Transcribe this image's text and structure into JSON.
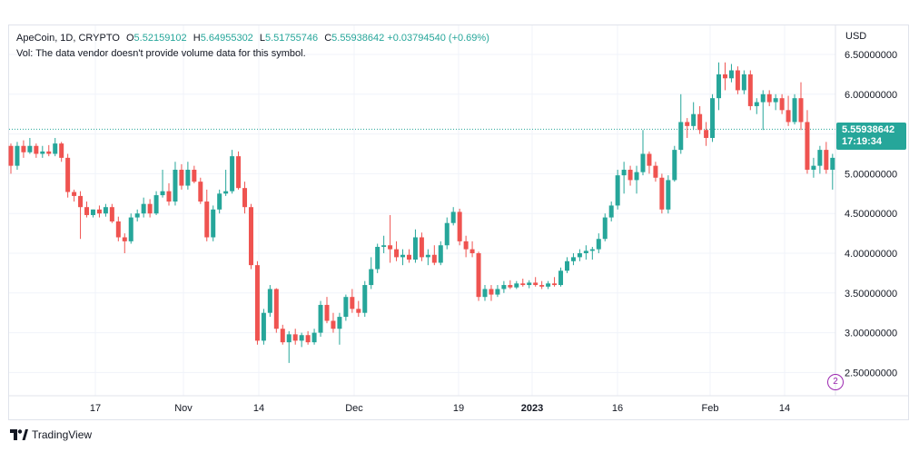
{
  "legend": {
    "symbol": "ApeCoin, 1D, CRYPTO",
    "open_key": "O",
    "open": "5.52159102",
    "high_key": "H",
    "high": "5.64955302",
    "low_key": "L",
    "low": "5.51755746",
    "close_key": "C",
    "close": "5.55938642",
    "change": "+0.03794540 (+0.69%)",
    "volume_note": "Vol: The data vendor doesn't provide volume data for this symbol."
  },
  "currency": "USD",
  "price_tag": {
    "price": "5.55938642",
    "countdown": "17:19:34"
  },
  "branding": {
    "name": "TradingView"
  },
  "colors": {
    "up": "#26a69a",
    "down": "#ef5350",
    "grid": "#f0f3fa",
    "last_price_line": "#26a69a"
  },
  "chart_data": {
    "type": "candlestick",
    "symbol": "ApeCoin",
    "interval": "1D",
    "ylim": [
      2.25,
      6.8
    ],
    "y_ticks": [
      "6.50000000",
      "6.00000000",
      "5.50000000",
      "5.00000000",
      "4.50000000",
      "4.00000000",
      "3.50000000",
      "3.00000000",
      "2.50000000"
    ],
    "x_ticks": [
      "17",
      "Nov",
      "14",
      "Dec",
      "19",
      "2023",
      "16",
      "Feb",
      "14"
    ],
    "grid": true,
    "last_price": 5.55938642,
    "candles": [
      {
        "o": 5.35,
        "h": 5.38,
        "l": 5.0,
        "c": 5.1
      },
      {
        "o": 5.1,
        "h": 5.4,
        "l": 5.05,
        "c": 5.35
      },
      {
        "o": 5.35,
        "h": 5.42,
        "l": 5.2,
        "c": 5.27
      },
      {
        "o": 5.27,
        "h": 5.45,
        "l": 5.25,
        "c": 5.35
      },
      {
        "o": 5.35,
        "h": 5.38,
        "l": 5.2,
        "c": 5.25
      },
      {
        "o": 5.25,
        "h": 5.35,
        "l": 5.2,
        "c": 5.28
      },
      {
        "o": 5.28,
        "h": 5.36,
        "l": 5.22,
        "c": 5.25
      },
      {
        "o": 5.25,
        "h": 5.45,
        "l": 5.22,
        "c": 5.38
      },
      {
        "o": 5.38,
        "h": 5.4,
        "l": 5.15,
        "c": 5.2
      },
      {
        "o": 5.2,
        "h": 5.25,
        "l": 4.7,
        "c": 4.77
      },
      {
        "o": 4.77,
        "h": 4.8,
        "l": 4.65,
        "c": 4.72
      },
      {
        "o": 4.72,
        "h": 4.78,
        "l": 4.18,
        "c": 4.58
      },
      {
        "o": 4.58,
        "h": 4.65,
        "l": 4.45,
        "c": 4.48
      },
      {
        "o": 4.48,
        "h": 4.55,
        "l": 4.45,
        "c": 4.55
      },
      {
        "o": 4.55,
        "h": 4.6,
        "l": 4.45,
        "c": 4.5
      },
      {
        "o": 4.5,
        "h": 4.62,
        "l": 4.46,
        "c": 4.58
      },
      {
        "o": 4.58,
        "h": 4.62,
        "l": 4.38,
        "c": 4.4
      },
      {
        "o": 4.4,
        "h": 4.46,
        "l": 4.15,
        "c": 4.2
      },
      {
        "o": 4.2,
        "h": 4.25,
        "l": 4.0,
        "c": 4.15
      },
      {
        "o": 4.15,
        "h": 4.5,
        "l": 4.12,
        "c": 4.45
      },
      {
        "o": 4.45,
        "h": 4.55,
        "l": 4.4,
        "c": 4.5
      },
      {
        "o": 4.5,
        "h": 4.7,
        "l": 4.45,
        "c": 4.62
      },
      {
        "o": 4.62,
        "h": 4.68,
        "l": 4.45,
        "c": 4.5
      },
      {
        "o": 4.5,
        "h": 4.78,
        "l": 4.48,
        "c": 4.73
      },
      {
        "o": 4.73,
        "h": 5.05,
        "l": 4.7,
        "c": 4.78
      },
      {
        "o": 4.78,
        "h": 4.88,
        "l": 4.6,
        "c": 4.65
      },
      {
        "o": 4.65,
        "h": 5.15,
        "l": 4.6,
        "c": 5.05
      },
      {
        "o": 5.05,
        "h": 5.12,
        "l": 4.8,
        "c": 4.85
      },
      {
        "o": 4.85,
        "h": 5.15,
        "l": 4.8,
        "c": 5.05
      },
      {
        "o": 5.05,
        "h": 5.1,
        "l": 4.88,
        "c": 4.9
      },
      {
        "o": 4.9,
        "h": 4.95,
        "l": 4.62,
        "c": 4.65
      },
      {
        "o": 4.65,
        "h": 4.8,
        "l": 4.15,
        "c": 4.2
      },
      {
        "o": 4.2,
        "h": 4.6,
        "l": 4.15,
        "c": 4.55
      },
      {
        "o": 4.55,
        "h": 4.8,
        "l": 4.5,
        "c": 4.75
      },
      {
        "o": 4.75,
        "h": 5.05,
        "l": 4.72,
        "c": 4.78
      },
      {
        "o": 4.78,
        "h": 5.3,
        "l": 4.75,
        "c": 5.22
      },
      {
        "o": 5.22,
        "h": 5.28,
        "l": 4.8,
        "c": 4.82
      },
      {
        "o": 4.82,
        "h": 4.9,
        "l": 4.5,
        "c": 4.58
      },
      {
        "o": 4.58,
        "h": 4.62,
        "l": 3.8,
        "c": 3.85
      },
      {
        "o": 3.85,
        "h": 3.9,
        "l": 2.85,
        "c": 2.9
      },
      {
        "o": 2.9,
        "h": 3.3,
        "l": 2.85,
        "c": 3.25
      },
      {
        "o": 3.25,
        "h": 3.6,
        "l": 3.2,
        "c": 3.55
      },
      {
        "o": 3.55,
        "h": 3.56,
        "l": 3.0,
        "c": 3.05
      },
      {
        "o": 3.05,
        "h": 3.1,
        "l": 2.85,
        "c": 2.88
      },
      {
        "o": 2.88,
        "h": 3.02,
        "l": 2.62,
        "c": 2.98
      },
      {
        "o": 2.98,
        "h": 3.05,
        "l": 2.85,
        "c": 2.9
      },
      {
        "o": 2.9,
        "h": 3.0,
        "l": 2.82,
        "c": 2.97
      },
      {
        "o": 2.97,
        "h": 3.02,
        "l": 2.85,
        "c": 2.88
      },
      {
        "o": 2.88,
        "h": 3.05,
        "l": 2.85,
        "c": 3.0
      },
      {
        "o": 3.0,
        "h": 3.4,
        "l": 2.95,
        "c": 3.35
      },
      {
        "o": 3.35,
        "h": 3.45,
        "l": 3.12,
        "c": 3.15
      },
      {
        "o": 3.15,
        "h": 3.25,
        "l": 3.0,
        "c": 3.05
      },
      {
        "o": 3.05,
        "h": 3.25,
        "l": 2.85,
        "c": 3.2
      },
      {
        "o": 3.2,
        "h": 3.48,
        "l": 3.15,
        "c": 3.45
      },
      {
        "o": 3.45,
        "h": 3.55,
        "l": 3.25,
        "c": 3.3
      },
      {
        "o": 3.3,
        "h": 3.4,
        "l": 3.2,
        "c": 3.25
      },
      {
        "o": 3.25,
        "h": 3.65,
        "l": 3.2,
        "c": 3.6
      },
      {
        "o": 3.6,
        "h": 3.95,
        "l": 3.55,
        "c": 3.8
      },
      {
        "o": 3.8,
        "h": 4.12,
        "l": 3.75,
        "c": 4.08
      },
      {
        "o": 4.08,
        "h": 4.22,
        "l": 4.0,
        "c": 4.1
      },
      {
        "o": 4.1,
        "h": 4.48,
        "l": 3.88,
        "c": 4.05
      },
      {
        "o": 4.05,
        "h": 4.15,
        "l": 3.9,
        "c": 3.95
      },
      {
        "o": 3.95,
        "h": 4.05,
        "l": 3.85,
        "c": 3.98
      },
      {
        "o": 3.98,
        "h": 4.05,
        "l": 3.88,
        "c": 3.92
      },
      {
        "o": 3.92,
        "h": 4.3,
        "l": 3.88,
        "c": 4.2
      },
      {
        "o": 4.2,
        "h": 4.26,
        "l": 3.9,
        "c": 3.95
      },
      {
        "o": 3.95,
        "h": 4.05,
        "l": 3.85,
        "c": 3.98
      },
      {
        "o": 3.98,
        "h": 4.1,
        "l": 3.85,
        "c": 3.88
      },
      {
        "o": 3.88,
        "h": 4.15,
        "l": 3.85,
        "c": 4.1
      },
      {
        "o": 4.1,
        "h": 4.45,
        "l": 4.05,
        "c": 4.38
      },
      {
        "o": 4.38,
        "h": 4.58,
        "l": 4.35,
        "c": 4.52
      },
      {
        "o": 4.52,
        "h": 4.56,
        "l": 4.1,
        "c": 4.15
      },
      {
        "o": 4.15,
        "h": 4.22,
        "l": 3.95,
        "c": 4.05
      },
      {
        "o": 4.05,
        "h": 4.15,
        "l": 3.95,
        "c": 4.0
      },
      {
        "o": 4.0,
        "h": 4.02,
        "l": 3.4,
        "c": 3.45
      },
      {
        "o": 3.45,
        "h": 3.6,
        "l": 3.4,
        "c": 3.55
      },
      {
        "o": 3.55,
        "h": 3.6,
        "l": 3.4,
        "c": 3.48
      },
      {
        "o": 3.48,
        "h": 3.6,
        "l": 3.45,
        "c": 3.55
      },
      {
        "o": 3.55,
        "h": 3.65,
        "l": 3.5,
        "c": 3.6
      },
      {
        "o": 3.6,
        "h": 3.66,
        "l": 3.55,
        "c": 3.57
      },
      {
        "o": 3.57,
        "h": 3.65,
        "l": 3.55,
        "c": 3.62
      },
      {
        "o": 3.62,
        "h": 3.68,
        "l": 3.58,
        "c": 3.6
      },
      {
        "o": 3.6,
        "h": 3.66,
        "l": 3.56,
        "c": 3.63
      },
      {
        "o": 3.63,
        "h": 3.7,
        "l": 3.58,
        "c": 3.6
      },
      {
        "o": 3.6,
        "h": 3.65,
        "l": 3.55,
        "c": 3.58
      },
      {
        "o": 3.58,
        "h": 3.65,
        "l": 3.55,
        "c": 3.62
      },
      {
        "o": 3.62,
        "h": 3.7,
        "l": 3.58,
        "c": 3.6
      },
      {
        "o": 3.6,
        "h": 3.82,
        "l": 3.58,
        "c": 3.78
      },
      {
        "o": 3.78,
        "h": 3.95,
        "l": 3.75,
        "c": 3.9
      },
      {
        "o": 3.9,
        "h": 4.0,
        "l": 3.85,
        "c": 3.95
      },
      {
        "o": 3.95,
        "h": 4.05,
        "l": 3.9,
        "c": 4.0
      },
      {
        "o": 4.0,
        "h": 4.1,
        "l": 3.92,
        "c": 4.03
      },
      {
        "o": 4.03,
        "h": 4.08,
        "l": 3.92,
        "c": 4.05
      },
      {
        "o": 4.05,
        "h": 4.25,
        "l": 4.0,
        "c": 4.18
      },
      {
        "o": 4.18,
        "h": 4.5,
        "l": 4.15,
        "c": 4.45
      },
      {
        "o": 4.45,
        "h": 4.65,
        "l": 4.4,
        "c": 4.6
      },
      {
        "o": 4.6,
        "h": 5.05,
        "l": 4.55,
        "c": 4.98
      },
      {
        "o": 4.98,
        "h": 5.15,
        "l": 4.75,
        "c": 5.05
      },
      {
        "o": 5.05,
        "h": 5.1,
        "l": 4.85,
        "c": 4.92
      },
      {
        "o": 4.92,
        "h": 5.1,
        "l": 4.75,
        "c": 5.02
      },
      {
        "o": 5.02,
        "h": 5.55,
        "l": 4.98,
        "c": 5.25
      },
      {
        "o": 5.25,
        "h": 5.28,
        "l": 5.0,
        "c": 5.1
      },
      {
        "o": 5.1,
        "h": 5.15,
        "l": 4.9,
        "c": 4.95
      },
      {
        "o": 4.95,
        "h": 5.0,
        "l": 4.5,
        "c": 4.55
      },
      {
        "o": 4.55,
        "h": 4.98,
        "l": 4.5,
        "c": 4.92
      },
      {
        "o": 4.92,
        "h": 5.35,
        "l": 4.9,
        "c": 5.3
      },
      {
        "o": 5.3,
        "h": 6.0,
        "l": 5.25,
        "c": 5.65
      },
      {
        "o": 5.65,
        "h": 5.7,
        "l": 5.45,
        "c": 5.6
      },
      {
        "o": 5.6,
        "h": 5.9,
        "l": 5.55,
        "c": 5.75
      },
      {
        "o": 5.75,
        "h": 5.85,
        "l": 5.5,
        "c": 5.55
      },
      {
        "o": 5.55,
        "h": 5.65,
        "l": 5.35,
        "c": 5.45
      },
      {
        "o": 5.45,
        "h": 6.0,
        "l": 5.4,
        "c": 5.95
      },
      {
        "o": 5.95,
        "h": 6.4,
        "l": 5.8,
        "c": 6.25
      },
      {
        "o": 6.25,
        "h": 6.4,
        "l": 6.05,
        "c": 6.2
      },
      {
        "o": 6.2,
        "h": 6.38,
        "l": 6.15,
        "c": 6.3
      },
      {
        "o": 6.3,
        "h": 6.35,
        "l": 6.0,
        "c": 6.05
      },
      {
        "o": 6.05,
        "h": 6.3,
        "l": 6.0,
        "c": 6.25
      },
      {
        "o": 6.25,
        "h": 6.3,
        "l": 5.8,
        "c": 5.85
      },
      {
        "o": 5.85,
        "h": 5.95,
        "l": 5.75,
        "c": 5.9
      },
      {
        "o": 5.9,
        "h": 6.05,
        "l": 5.55,
        "c": 6.0
      },
      {
        "o": 6.0,
        "h": 6.05,
        "l": 5.85,
        "c": 5.9
      },
      {
        "o": 5.9,
        "h": 6.0,
        "l": 5.8,
        "c": 5.95
      },
      {
        "o": 5.95,
        "h": 6.0,
        "l": 5.75,
        "c": 5.8
      },
      {
        "o": 5.8,
        "h": 5.98,
        "l": 5.6,
        "c": 5.65
      },
      {
        "o": 5.65,
        "h": 6.0,
        "l": 5.62,
        "c": 5.95
      },
      {
        "o": 5.95,
        "h": 6.15,
        "l": 5.55,
        "c": 5.65
      },
      {
        "o": 5.65,
        "h": 5.8,
        "l": 5.0,
        "c": 5.05
      },
      {
        "o": 5.05,
        "h": 5.2,
        "l": 4.95,
        "c": 5.1
      },
      {
        "o": 5.1,
        "h": 5.35,
        "l": 5.0,
        "c": 5.3
      },
      {
        "o": 5.3,
        "h": 5.4,
        "l": 5.0,
        "c": 5.05
      },
      {
        "o": 5.05,
        "h": 5.25,
        "l": 4.8,
        "c": 5.2
      },
      {
        "o": 5.2,
        "h": 5.6,
        "l": 5.15,
        "c": 5.55
      },
      {
        "o": 5.55,
        "h": 5.72,
        "l": 5.15,
        "c": 5.2
      },
      {
        "o": 5.2,
        "h": 5.65,
        "l": 5.18,
        "c": 5.6
      },
      {
        "o": 5.6,
        "h": 5.75,
        "l": 5.55,
        "c": 5.68
      },
      {
        "o": 5.68,
        "h": 5.78,
        "l": 5.5,
        "c": 5.55
      },
      {
        "o": 5.55,
        "h": 5.95,
        "l": 5.52,
        "c": 5.88
      },
      {
        "o": 5.88,
        "h": 5.92,
        "l": 5.48,
        "c": 5.52
      },
      {
        "o": 5.52159102,
        "h": 5.64955302,
        "l": 5.51755746,
        "c": 5.55938642
      }
    ]
  }
}
